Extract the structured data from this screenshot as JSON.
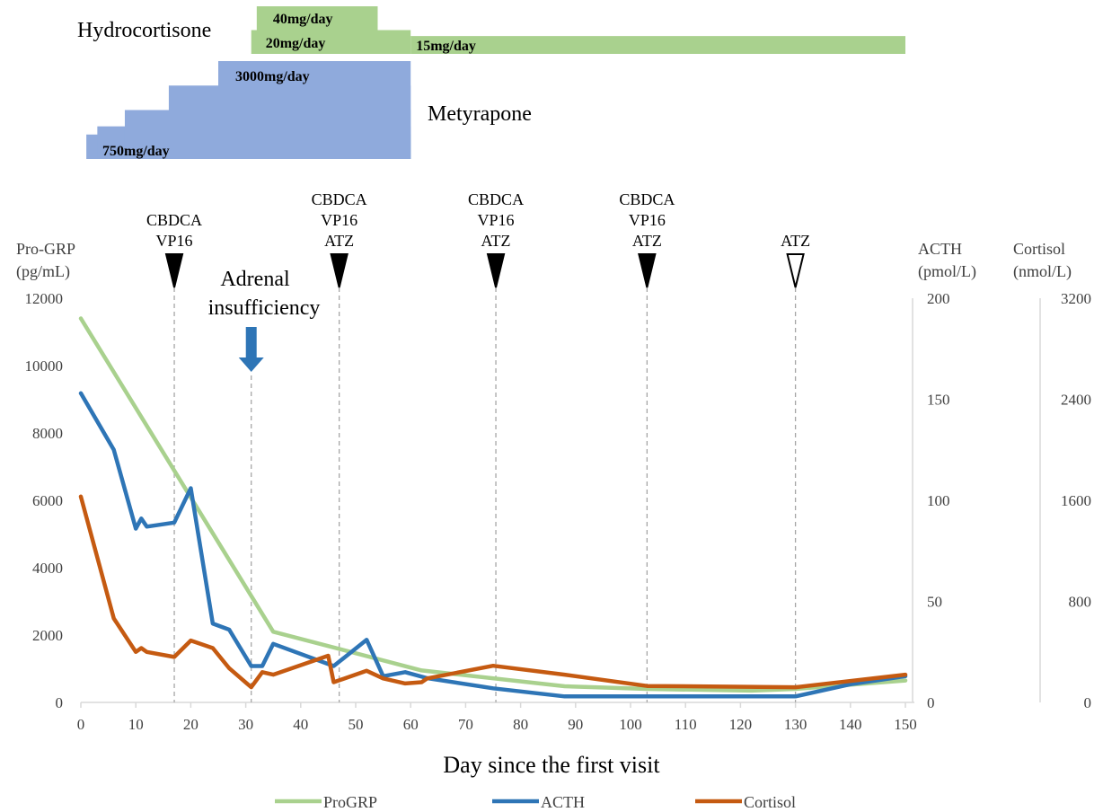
{
  "treatment": {
    "hydrocortisone": {
      "label": "Hydrocortisone",
      "color": "#a9d18e",
      "doses": [
        {
          "label": "40mg/day",
          "mg": 40,
          "start_day": 32,
          "end_day": 54
        },
        {
          "label": "20mg/day",
          "mg": 20,
          "start_day": 31,
          "end_day": 60
        },
        {
          "label": "15mg/day",
          "mg": 15,
          "start_day": 60,
          "end_day": 150
        }
      ]
    },
    "metyrapone": {
      "label": "Metyrapone",
      "color": "#8faadc",
      "doses": [
        {
          "label": "",
          "mg": 750,
          "start_day": 1,
          "end_day": 60
        },
        {
          "label": "",
          "mg": 1000,
          "start_day": 3,
          "end_day": 60
        },
        {
          "label": "",
          "mg": 1500,
          "start_day": 8,
          "end_day": 60
        },
        {
          "label": "",
          "mg": 2250,
          "start_day": 16,
          "end_day": 60
        },
        {
          "label": "",
          "mg": 3000,
          "start_day": 25,
          "end_day": 60
        }
      ],
      "min_label": "750mg/day",
      "max_label": "3000mg/day"
    }
  },
  "events": [
    {
      "day": 17,
      "lines": [
        "CBDCA",
        "VP16"
      ],
      "marker": "filled"
    },
    {
      "day": 47,
      "lines": [
        "CBDCA",
        "VP16",
        "ATZ"
      ],
      "marker": "filled"
    },
    {
      "day": 75.5,
      "lines": [
        "CBDCA",
        "VP16",
        "ATZ"
      ],
      "marker": "filled"
    },
    {
      "day": 103,
      "lines": [
        "CBDCA",
        "VP16",
        "ATZ"
      ],
      "marker": "filled"
    },
    {
      "day": 130,
      "lines": [
        "ATZ"
      ],
      "marker": "open"
    }
  ],
  "adrenal_event": {
    "day": 31,
    "lines": [
      "Adrenal",
      "insufficiency"
    ],
    "color": "#2e75b6"
  },
  "chart_data": {
    "type": "line",
    "xlabel": "Day since the first visit",
    "xlim": [
      0,
      150
    ],
    "xticks": [
      0,
      10,
      20,
      30,
      40,
      50,
      60,
      70,
      80,
      90,
      100,
      110,
      120,
      130,
      140,
      150
    ],
    "axes": {
      "left": {
        "label_lines": [
          "Pro-GRP",
          "(pg/mL)"
        ],
        "ylim": [
          0,
          12000
        ],
        "ticks": [
          0,
          2000,
          4000,
          6000,
          8000,
          10000,
          12000
        ]
      },
      "right1": {
        "label_lines": [
          "ACTH",
          "(pmol/L)"
        ],
        "ylim": [
          0,
          200
        ],
        "ticks": [
          0,
          50,
          100,
          150,
          200
        ]
      },
      "right2": {
        "label_lines": [
          "Cortisol",
          "(nmol/L)"
        ],
        "ylim": [
          0,
          3200
        ],
        "ticks": [
          0,
          800,
          1600,
          2400,
          3200
        ]
      }
    },
    "grid": false,
    "legend": "bottom",
    "series": [
      {
        "name": "ProGRP",
        "axis": "left",
        "color": "#a9d18e",
        "points": [
          [
            0,
            11400
          ],
          [
            35,
            2100
          ],
          [
            62,
            950
          ],
          [
            88,
            480
          ],
          [
            103,
            400
          ],
          [
            122,
            350
          ],
          [
            130,
            400
          ],
          [
            150,
            650
          ]
        ]
      },
      {
        "name": "ACTH",
        "axis": "right1",
        "color": "#2e75b6",
        "points": [
          [
            0,
            153
          ],
          [
            6,
            125
          ],
          [
            10,
            86
          ],
          [
            11,
            91
          ],
          [
            12,
            87
          ],
          [
            17,
            89
          ],
          [
            20,
            106
          ],
          [
            24,
            39
          ],
          [
            27,
            36
          ],
          [
            31,
            18
          ],
          [
            33,
            18
          ],
          [
            35,
            29
          ],
          [
            46,
            18
          ],
          [
            52,
            31
          ],
          [
            55,
            13
          ],
          [
            59,
            15
          ],
          [
            63,
            12
          ],
          [
            75,
            7
          ],
          [
            88,
            3
          ],
          [
            103,
            3
          ],
          [
            130,
            3
          ],
          [
            140,
            9
          ],
          [
            150,
            13
          ]
        ]
      },
      {
        "name": "Cortisol",
        "axis": "right2",
        "color": "#c55a11",
        "points": [
          [
            0,
            1630
          ],
          [
            6,
            665
          ],
          [
            10,
            400
          ],
          [
            11,
            430
          ],
          [
            12,
            400
          ],
          [
            17,
            360
          ],
          [
            20,
            490
          ],
          [
            24,
            430
          ],
          [
            27,
            270
          ],
          [
            31,
            120
          ],
          [
            33,
            240
          ],
          [
            35,
            220
          ],
          [
            45,
            370
          ],
          [
            46,
            160
          ],
          [
            52,
            250
          ],
          [
            55,
            190
          ],
          [
            59,
            150
          ],
          [
            62,
            160
          ],
          [
            63,
            190
          ],
          [
            75,
            290
          ],
          [
            88,
            220
          ],
          [
            103,
            130
          ],
          [
            130,
            120
          ],
          [
            150,
            220
          ]
        ]
      }
    ]
  }
}
